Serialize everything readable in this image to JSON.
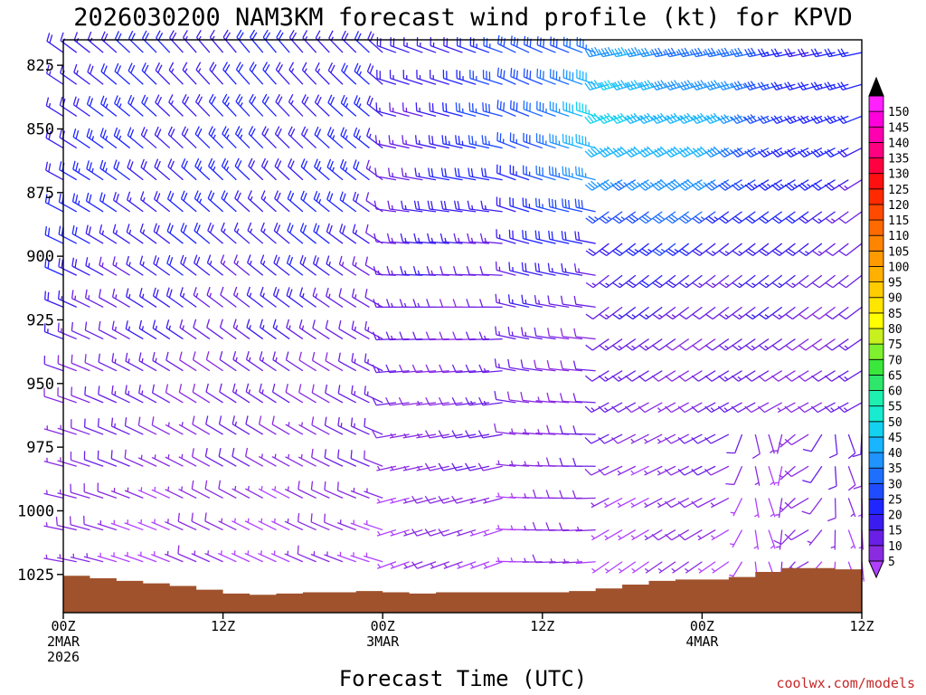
{
  "chart_data": {
    "type": "wind_barb_time_height",
    "title": "2026030200 NAM3KM forecast wind profile (kt) for KPVD",
    "xlabel": "Forecast Time (UTC)",
    "ylabel": "",
    "credit": "coolwx.com/models",
    "x_range_hours": [
      0,
      60
    ],
    "y_range_hpa": [
      815,
      1040
    ],
    "y_ticks": [
      825,
      850,
      875,
      900,
      925,
      950,
      975,
      1000,
      1025
    ],
    "x_ticks": [
      {
        "hour": 0,
        "lines": [
          "00Z",
          "2MAR",
          "2026"
        ]
      },
      {
        "hour": 12,
        "lines": [
          "12Z"
        ]
      },
      {
        "hour": 24,
        "lines": [
          "00Z",
          "3MAR"
        ]
      },
      {
        "hour": 36,
        "lines": [
          "12Z"
        ]
      },
      {
        "hour": 48,
        "lines": [
          "00Z",
          "4MAR"
        ]
      },
      {
        "hour": 60,
        "lines": [
          "12Z"
        ]
      }
    ],
    "colorbar_levels": [
      5,
      10,
      15,
      20,
      25,
      30,
      35,
      40,
      45,
      50,
      55,
      60,
      65,
      70,
      75,
      80,
      85,
      90,
      95,
      100,
      105,
      110,
      115,
      120,
      125,
      130,
      135,
      140,
      145,
      150
    ],
    "colorbar_colors": [
      "#8a2be2",
      "#6a1fe6",
      "#3a1cf0",
      "#1f26ff",
      "#1f4cff",
      "#1f6fff",
      "#1f94ff",
      "#19b5ff",
      "#13d2f0",
      "#18ebcf",
      "#1ef0b0",
      "#2ee66a",
      "#39e83b",
      "#7ef02e",
      "#c8f01e",
      "#ffff00",
      "#ffe600",
      "#ffcc00",
      "#ffb000",
      "#ff9a00",
      "#ff8400",
      "#ff6a00",
      "#ff4a00",
      "#ff2a00",
      "#ff1010",
      "#ff0040",
      "#ff0080",
      "#ff00b0",
      "#ff00dd",
      "#ff22ff"
    ],
    "colorbar_ends": {
      "low_color": "#b040ff",
      "high_color": "#000000"
    },
    "surface_pressure_hpa": [
      {
        "hour": 0,
        "p": 1025.5
      },
      {
        "hour": 2,
        "p": 1026.5
      },
      {
        "hour": 4,
        "p": 1027.5
      },
      {
        "hour": 6,
        "p": 1028.5
      },
      {
        "hour": 8,
        "p": 1029.5
      },
      {
        "hour": 10,
        "p": 1031
      },
      {
        "hour": 12,
        "p": 1032.5
      },
      {
        "hour": 14,
        "p": 1033
      },
      {
        "hour": 16,
        "p": 1032.5
      },
      {
        "hour": 18,
        "p": 1032
      },
      {
        "hour": 20,
        "p": 1032
      },
      {
        "hour": 22,
        "p": 1031.5
      },
      {
        "hour": 24,
        "p": 1032
      },
      {
        "hour": 26,
        "p": 1032.5
      },
      {
        "hour": 28,
        "p": 1032
      },
      {
        "hour": 30,
        "p": 1032
      },
      {
        "hour": 32,
        "p": 1032
      },
      {
        "hour": 34,
        "p": 1032
      },
      {
        "hour": 36,
        "p": 1032
      },
      {
        "hour": 38,
        "p": 1031.5
      },
      {
        "hour": 40,
        "p": 1030.5
      },
      {
        "hour": 42,
        "p": 1029
      },
      {
        "hour": 44,
        "p": 1027.5
      },
      {
        "hour": 46,
        "p": 1027
      },
      {
        "hour": 48,
        "p": 1027
      },
      {
        "hour": 50,
        "p": 1026
      },
      {
        "hour": 52,
        "p": 1024
      },
      {
        "hour": 54,
        "p": 1022.5
      },
      {
        "hour": 56,
        "p": 1022.5
      },
      {
        "hour": 58,
        "p": 1023
      },
      {
        "hour": 60,
        "p": 1024
      }
    ],
    "barb_field_summary": "Hourly wind barbs every 12.5 hPa from 820 to 1030 hPa; speed colored by colorbar. Strongest winds (45-55 kt) near 825-875 hPa after 15Z 3MAR; light and variable winds near the surface."
  }
}
